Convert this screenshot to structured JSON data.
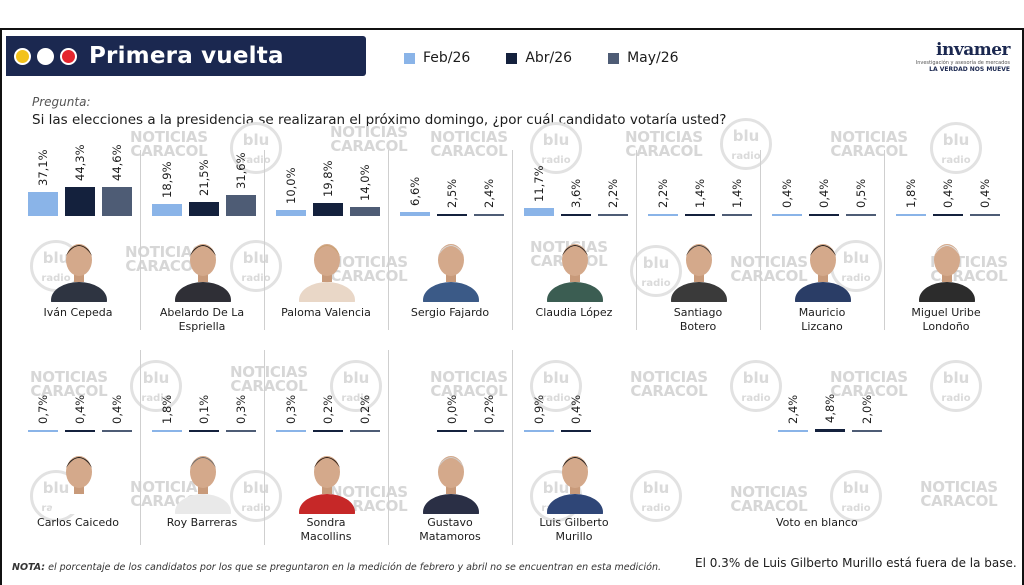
{
  "header": {
    "title": "Primera vuelta",
    "dot_colors": [
      "#f3c21b",
      "#ffffff",
      "#e4262e"
    ]
  },
  "legend": [
    {
      "label": "Feb/26",
      "color": "#8ab4e8"
    },
    {
      "label": "Abr/26",
      "color": "#14213d"
    },
    {
      "label": "May/26",
      "color": "#4e5c75"
    }
  ],
  "logo": {
    "name": "invamer",
    "sub": "Investigación y asesoría de mercados",
    "tag": "LA VERDAD NOS MUEVE"
  },
  "question": {
    "label": "Pregunta:",
    "text": "Si las elecciones a la presidencia se realizaran el próximo domingo, ¿por cuál candidato votaría usted?"
  },
  "watermarks": {
    "noticias": "NOTICIAS",
    "caracol": "CARACOL",
    "blu": "blu",
    "radio": "radio"
  },
  "chart_data": {
    "type": "bar",
    "series_names": [
      "Feb/26",
      "Abr/26",
      "May/26"
    ],
    "candidates": [
      {
        "name_lines": [
          "Iván Cepeda"
        ],
        "labels": [
          "37,1%",
          "44,3%",
          "44,6%"
        ],
        "values": [
          37.1,
          44.3,
          44.6
        ]
      },
      {
        "name_lines": [
          "Abelardo De La",
          "Espriella"
        ],
        "labels": [
          "18,9%",
          "21,5%",
          "31,6%"
        ],
        "values": [
          18.9,
          21.5,
          31.6
        ]
      },
      {
        "name_lines": [
          "Paloma Valencia"
        ],
        "labels": [
          "10,0%",
          "19,8%",
          "14,0%"
        ],
        "values": [
          10.0,
          19.8,
          14.0
        ]
      },
      {
        "name_lines": [
          "Sergio Fajardo"
        ],
        "labels": [
          "6,6%",
          "2,5%",
          "2,4%"
        ],
        "values": [
          6.6,
          2.5,
          2.4
        ]
      },
      {
        "name_lines": [
          "Claudia López"
        ],
        "labels": [
          "11,7%",
          "3,6%",
          "2,2%"
        ],
        "values": [
          11.7,
          3.6,
          2.2
        ]
      },
      {
        "name_lines": [
          "Santiago",
          "Botero"
        ],
        "labels": [
          "2,2%",
          "1,4%",
          "1,4%"
        ],
        "values": [
          2.2,
          1.4,
          1.4
        ]
      },
      {
        "name_lines": [
          "Mauricio",
          "Lizcano"
        ],
        "labels": [
          "0,4%",
          "0,4%",
          "0,5%"
        ],
        "values": [
          0.4,
          0.4,
          0.5
        ]
      },
      {
        "name_lines": [
          "Miguel Uribe",
          "Londoño"
        ],
        "labels": [
          "1,8%",
          "0,4%",
          "0,4%"
        ],
        "values": [
          1.8,
          0.4,
          0.4
        ]
      },
      {
        "name_lines": [
          "Carlos Caicedo"
        ],
        "labels": [
          "0,7%",
          "0,4%",
          "0,4%"
        ],
        "values": [
          0.7,
          0.4,
          0.4
        ]
      },
      {
        "name_lines": [
          "Roy Barreras"
        ],
        "labels": [
          "1,8%",
          "0,1%",
          "0,3%"
        ],
        "values": [
          1.8,
          0.1,
          0.3
        ]
      },
      {
        "name_lines": [
          "Sondra",
          "Macollins"
        ],
        "labels": [
          "0,3%",
          "0,2%",
          "0,2%"
        ],
        "values": [
          0.3,
          0.2,
          0.2
        ]
      },
      {
        "name_lines": [
          "Gustavo",
          "Matamoros"
        ],
        "labels": [
          "",
          "0,0%",
          "0,2%"
        ],
        "values": [
          null,
          0.0,
          0.2
        ]
      },
      {
        "name_lines": [
          "Luis Gilberto",
          "Murillo"
        ],
        "labels": [
          "0,9%",
          "0,4%",
          ""
        ],
        "values": [
          0.9,
          0.4,
          null
        ]
      },
      {
        "name_lines": [
          "Voto en blanco"
        ],
        "labels": [
          "2,4%",
          "4,8%",
          "2,0%"
        ],
        "values": [
          2.4,
          4.8,
          2.0
        ]
      }
    ]
  },
  "notes": {
    "nota_label": "NOTA:",
    "nota_text": " el porcentaje de los candidatos por los que se preguntaron en la medición de febrero y abril  no se encuentran en esta medición.",
    "murillo": "El 0.3% de Luis Gilberto Murillo está fuera de la base."
  }
}
